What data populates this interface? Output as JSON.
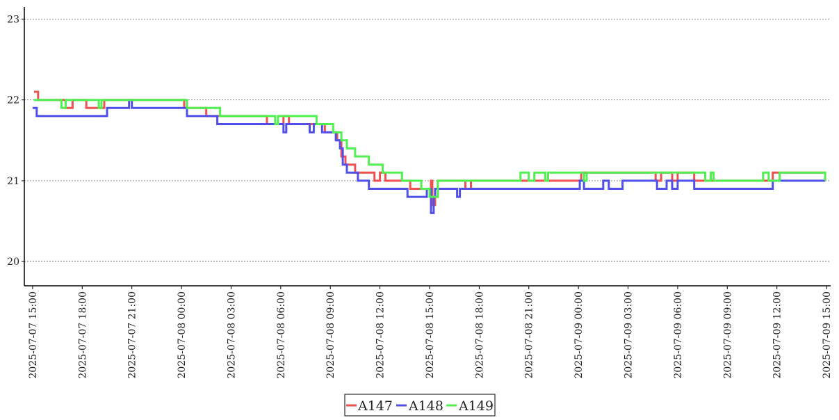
{
  "chart_data": {
    "type": "line",
    "title": "",
    "xlabel": "",
    "ylabel": "",
    "ylim": [
      19.7,
      23.15
    ],
    "xlim": [
      "2025-07-07 14:30",
      "2025-07-09 15:15"
    ],
    "grid": "horizontal dotted",
    "legend_position": "bottom-center",
    "yticks": [
      {
        "value": 20,
        "label": "20"
      },
      {
        "value": 21,
        "label": "21"
      },
      {
        "value": 22,
        "label": "22"
      },
      {
        "value": 23,
        "label": "23"
      }
    ],
    "xticks": [
      {
        "value": "2025-07-07 15:00",
        "label": "2025-07-07  15:00"
      },
      {
        "value": "2025-07-07 18:00",
        "label": "2025-07-07  18:00"
      },
      {
        "value": "2025-07-07 21:00",
        "label": "2025-07-07  21:00"
      },
      {
        "value": "2025-07-08 00:00",
        "label": "2025-07-08  00:00"
      },
      {
        "value": "2025-07-08 03:00",
        "label": "2025-07-08  03:00"
      },
      {
        "value": "2025-07-08 06:00",
        "label": "2025-07-08  06:00"
      },
      {
        "value": "2025-07-08 09:00",
        "label": "2025-07-08  09:00"
      },
      {
        "value": "2025-07-08 12:00",
        "label": "2025-07-08  12:00"
      },
      {
        "value": "2025-07-08 15:00",
        "label": "2025-07-08  15:00"
      },
      {
        "value": "2025-07-08 18:00",
        "label": "2025-07-08  18:00"
      },
      {
        "value": "2025-07-08 21:00",
        "label": "2025-07-08  21:00"
      },
      {
        "value": "2025-07-09 00:00",
        "label": "2025-07-09  00:00"
      },
      {
        "value": "2025-07-09 03:00",
        "label": "2025-07-09  03:00"
      },
      {
        "value": "2025-07-09 06:00",
        "label": "2025-07-09  06:00"
      },
      {
        "value": "2025-07-09 09:00",
        "label": "2025-07-09  09:00"
      },
      {
        "value": "2025-07-09 12:00",
        "label": "2025-07-09  12:00"
      },
      {
        "value": "2025-07-09 15:00",
        "label": "2025-07-09  15:00"
      }
    ],
    "series": [
      {
        "name": "A147",
        "color": "#f05050",
        "points": [
          [
            "2025-07-07 15:05",
            22.1
          ],
          [
            "2025-07-07 15:20",
            22.0
          ],
          [
            "2025-07-07 17:00",
            21.9
          ],
          [
            "2025-07-07 17:25",
            22.0
          ],
          [
            "2025-07-07 18:15",
            21.9
          ],
          [
            "2025-07-07 18:20",
            21.9
          ],
          [
            "2025-07-07 19:20",
            22.0
          ],
          [
            "2025-07-08 00:00",
            22.0
          ],
          [
            "2025-07-08 00:10",
            21.9
          ],
          [
            "2025-07-08 01:00",
            21.9
          ],
          [
            "2025-07-08 01:30",
            21.8
          ],
          [
            "2025-07-08 05:00",
            21.8
          ],
          [
            "2025-07-08 05:10",
            21.7
          ],
          [
            "2025-07-08 06:00",
            21.7
          ],
          [
            "2025-07-08 06:10",
            21.8
          ],
          [
            "2025-07-08 06:30",
            21.7
          ],
          [
            "2025-07-08 08:30",
            21.7
          ],
          [
            "2025-07-08 08:40",
            21.6
          ],
          [
            "2025-07-08 09:25",
            21.5
          ],
          [
            "2025-07-08 09:40",
            21.3
          ],
          [
            "2025-07-08 09:55",
            21.2
          ],
          [
            "2025-07-08 10:30",
            21.1
          ],
          [
            "2025-07-08 11:40",
            21.0
          ],
          [
            "2025-07-08 12:00",
            21.1
          ],
          [
            "2025-07-08 12:20",
            21.0
          ],
          [
            "2025-07-08 13:50",
            20.9
          ],
          [
            "2025-07-08 15:00",
            20.9
          ],
          [
            "2025-07-08 15:05",
            21.0
          ],
          [
            "2025-07-08 15:10",
            20.7
          ],
          [
            "2025-07-08 15:20",
            20.8
          ],
          [
            "2025-07-08 15:30",
            21.0
          ],
          [
            "2025-07-08 17:00",
            21.0
          ],
          [
            "2025-07-08 17:10",
            20.9
          ],
          [
            "2025-07-08 17:30",
            21.0
          ],
          [
            "2025-07-09 00:00",
            21.0
          ],
          [
            "2025-07-09 00:10",
            21.1
          ],
          [
            "2025-07-09 04:30",
            21.1
          ],
          [
            "2025-07-09 04:40",
            21.0
          ],
          [
            "2025-07-09 05:00",
            21.1
          ],
          [
            "2025-07-09 05:40",
            21.0
          ],
          [
            "2025-07-09 06:00",
            21.1
          ],
          [
            "2025-07-09 07:00",
            21.0
          ],
          [
            "2025-07-09 11:40",
            21.0
          ],
          [
            "2025-07-09 11:45",
            21.1
          ],
          [
            "2025-07-09 14:55",
            21.1
          ]
        ]
      },
      {
        "name": "A148",
        "color": "#5050e8",
        "points": [
          [
            "2025-07-07 15:00",
            21.9
          ],
          [
            "2025-07-07 15:15",
            21.8
          ],
          [
            "2025-07-07 19:20",
            21.8
          ],
          [
            "2025-07-07 19:30",
            21.9
          ],
          [
            "2025-07-07 20:40",
            21.9
          ],
          [
            "2025-07-07 20:50",
            22.0
          ],
          [
            "2025-07-07 21:00",
            21.9
          ],
          [
            "2025-07-08 00:10",
            21.9
          ],
          [
            "2025-07-08 00:20",
            21.8
          ],
          [
            "2025-07-08 02:00",
            21.8
          ],
          [
            "2025-07-08 02:10",
            21.7
          ],
          [
            "2025-07-08 06:00",
            21.7
          ],
          [
            "2025-07-08 06:10",
            21.6
          ],
          [
            "2025-07-08 06:20",
            21.7
          ],
          [
            "2025-07-08 07:40",
            21.7
          ],
          [
            "2025-07-08 07:45",
            21.6
          ],
          [
            "2025-07-08 08:00",
            21.7
          ],
          [
            "2025-07-08 08:30",
            21.6
          ],
          [
            "2025-07-08 09:20",
            21.5
          ],
          [
            "2025-07-08 09:35",
            21.4
          ],
          [
            "2025-07-08 09:45",
            21.2
          ],
          [
            "2025-07-08 10:00",
            21.1
          ],
          [
            "2025-07-08 10:40",
            21.0
          ],
          [
            "2025-07-08 11:20",
            20.9
          ],
          [
            "2025-07-08 13:40",
            20.8
          ],
          [
            "2025-07-08 14:50",
            20.9
          ],
          [
            "2025-07-08 15:05",
            20.6
          ],
          [
            "2025-07-08 15:15",
            20.8
          ],
          [
            "2025-07-08 15:20",
            20.9
          ],
          [
            "2025-07-08 16:40",
            20.8
          ],
          [
            "2025-07-08 16:50",
            20.9
          ],
          [
            "2025-07-09 00:00",
            20.9
          ],
          [
            "2025-07-09 00:05",
            21.0
          ],
          [
            "2025-07-09 00:20",
            20.9
          ],
          [
            "2025-07-09 01:30",
            21.0
          ],
          [
            "2025-07-09 01:50",
            20.9
          ],
          [
            "2025-07-09 02:30",
            20.9
          ],
          [
            "2025-07-09 02:40",
            21.0
          ],
          [
            "2025-07-09 04:40",
            21.0
          ],
          [
            "2025-07-09 04:45",
            20.9
          ],
          [
            "2025-07-09 05:20",
            21.0
          ],
          [
            "2025-07-09 05:40",
            20.9
          ],
          [
            "2025-07-09 06:00",
            21.0
          ],
          [
            "2025-07-09 07:00",
            20.9
          ],
          [
            "2025-07-09 11:40",
            20.9
          ],
          [
            "2025-07-09 11:45",
            21.0
          ],
          [
            "2025-07-09 14:55",
            21.0
          ]
        ]
      },
      {
        "name": "A149",
        "color": "#50f050",
        "points": [
          [
            "2025-07-07 15:05",
            22.0
          ],
          [
            "2025-07-07 16:40",
            22.0
          ],
          [
            "2025-07-07 16:45",
            21.9
          ],
          [
            "2025-07-07 17:00",
            22.0
          ],
          [
            "2025-07-07 18:30",
            22.0
          ],
          [
            "2025-07-07 19:00",
            21.9
          ],
          [
            "2025-07-07 19:10",
            22.0
          ],
          [
            "2025-07-08 00:00",
            22.0
          ],
          [
            "2025-07-08 00:20",
            21.9
          ],
          [
            "2025-07-08 02:10",
            21.9
          ],
          [
            "2025-07-08 02:20",
            21.8
          ],
          [
            "2025-07-08 05:30",
            21.8
          ],
          [
            "2025-07-08 05:40",
            21.7
          ],
          [
            "2025-07-08 05:50",
            21.8
          ],
          [
            "2025-07-08 08:00",
            21.8
          ],
          [
            "2025-07-08 08:10",
            21.7
          ],
          [
            "2025-07-08 09:00",
            21.7
          ],
          [
            "2025-07-08 09:10",
            21.6
          ],
          [
            "2025-07-08 09:40",
            21.5
          ],
          [
            "2025-07-08 10:00",
            21.4
          ],
          [
            "2025-07-08 10:30",
            21.3
          ],
          [
            "2025-07-08 11:20",
            21.2
          ],
          [
            "2025-07-08 12:10",
            21.1
          ],
          [
            "2025-07-08 13:10",
            21.1
          ],
          [
            "2025-07-08 13:20",
            21.0
          ],
          [
            "2025-07-08 14:30",
            20.9
          ],
          [
            "2025-07-08 15:00",
            20.8
          ],
          [
            "2025-07-08 15:30",
            21.0
          ],
          [
            "2025-07-08 20:20",
            21.0
          ],
          [
            "2025-07-08 20:30",
            21.1
          ],
          [
            "2025-07-08 21:00",
            21.0
          ],
          [
            "2025-07-08 21:20",
            21.1
          ],
          [
            "2025-07-08 22:00",
            21.0
          ],
          [
            "2025-07-08 22:10",
            21.1
          ],
          [
            "2025-07-09 00:00",
            21.1
          ],
          [
            "2025-07-09 00:20",
            21.0
          ],
          [
            "2025-07-09 00:30",
            21.1
          ],
          [
            "2025-07-09 07:20",
            21.1
          ],
          [
            "2025-07-09 07:40",
            21.0
          ],
          [
            "2025-07-09 08:00",
            21.1
          ],
          [
            "2025-07-09 08:10",
            21.0
          ],
          [
            "2025-07-09 11:00",
            21.0
          ],
          [
            "2025-07-09 11:10",
            21.1
          ],
          [
            "2025-07-09 11:30",
            21.0
          ],
          [
            "2025-07-09 12:10",
            21.1
          ],
          [
            "2025-07-09 14:55",
            21.0
          ]
        ]
      }
    ]
  }
}
